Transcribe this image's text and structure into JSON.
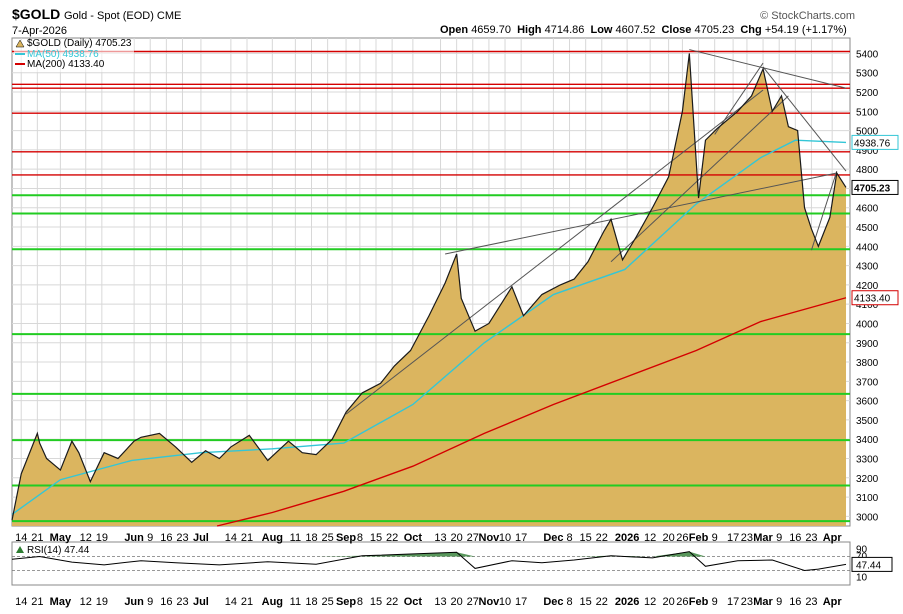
{
  "header": {
    "symbol": "$GOLD",
    "subtitle": "Gold - Spot (EOD) CME",
    "date": "7-Apr-2026",
    "credit": "© StockCharts.com",
    "open_label": "Open",
    "open": "4659.70",
    "high_label": "High",
    "high": "4714.86",
    "low_label": "Low",
    "low": "4607.52",
    "close_label": "Close",
    "close": "4705.23",
    "chg_label": "Chg",
    "chg": "+54.19 (+1.17%)"
  },
  "colors": {
    "area_fill": "#dbb55f",
    "price_line": "#1a1a1a",
    "ma50": "#33c6d6",
    "ma200": "#d40000",
    "green_level": "#22cc22",
    "red_level": "#d40000",
    "grid": "#d8d8d8",
    "trend": "#555555"
  },
  "chart_data": [
    {
      "type": "area",
      "title": "$GOLD",
      "ylim": [
        2950,
        5480
      ],
      "yticks": [
        3000,
        3100,
        3200,
        3300,
        3400,
        3500,
        3600,
        3700,
        3800,
        3900,
        4000,
        4100,
        4200,
        4300,
        4400,
        4500,
        4600,
        4700,
        4800,
        4900,
        5000,
        5100,
        5200,
        5300,
        5400
      ],
      "x_tick_labels": [
        {
          "date": "2025-04-14",
          "label": "14"
        },
        {
          "date": "2025-04-21",
          "label": "21"
        },
        {
          "date": "2025-05-01",
          "label": "May",
          "bold": true
        },
        {
          "date": "2025-05-12",
          "label": "12"
        },
        {
          "date": "2025-05-19",
          "label": "19"
        },
        {
          "date": "2025-06-02",
          "label": "Jun",
          "bold": true
        },
        {
          "date": "2025-06-09",
          "label": "9"
        },
        {
          "date": "2025-06-16",
          "label": "16"
        },
        {
          "date": "2025-06-23",
          "label": "23"
        },
        {
          "date": "2025-07-01",
          "label": "Jul",
          "bold": true
        },
        {
          "date": "2025-07-14",
          "label": "14"
        },
        {
          "date": "2025-07-21",
          "label": "21"
        },
        {
          "date": "2025-08-01",
          "label": "Aug",
          "bold": true
        },
        {
          "date": "2025-08-11",
          "label": "11"
        },
        {
          "date": "2025-08-18",
          "label": "18"
        },
        {
          "date": "2025-08-25",
          "label": "25"
        },
        {
          "date": "2025-09-02",
          "label": "Sep",
          "bold": true
        },
        {
          "date": "2025-09-08",
          "label": "8"
        },
        {
          "date": "2025-09-15",
          "label": "15"
        },
        {
          "date": "2025-09-22",
          "label": "22"
        },
        {
          "date": "2025-10-01",
          "label": "Oct",
          "bold": true
        },
        {
          "date": "2025-10-13",
          "label": "13"
        },
        {
          "date": "2025-10-20",
          "label": "20"
        },
        {
          "date": "2025-10-27",
          "label": "27"
        },
        {
          "date": "2025-11-03",
          "label": "Nov",
          "bold": true
        },
        {
          "date": "2025-11-10",
          "label": "10"
        },
        {
          "date": "2025-11-17",
          "label": "17"
        },
        {
          "date": "2025-12-01",
          "label": "Dec",
          "bold": true
        },
        {
          "date": "2025-12-08",
          "label": "8"
        },
        {
          "date": "2025-12-15",
          "label": "15"
        },
        {
          "date": "2025-12-22",
          "label": "22"
        },
        {
          "date": "2026-01-02",
          "label": "2026",
          "bold": true
        },
        {
          "date": "2026-01-12",
          "label": "12"
        },
        {
          "date": "2026-01-20",
          "label": "20"
        },
        {
          "date": "2026-01-26",
          "label": "26"
        },
        {
          "date": "2026-02-02",
          "label": "Feb",
          "bold": true
        },
        {
          "date": "2026-02-09",
          "label": "9"
        },
        {
          "date": "2026-02-17",
          "label": "17"
        },
        {
          "date": "2026-02-23",
          "label": "23"
        },
        {
          "date": "2026-03-02",
          "label": "Mar",
          "bold": true
        },
        {
          "date": "2026-03-09",
          "label": "9"
        },
        {
          "date": "2026-03-16",
          "label": "16"
        },
        {
          "date": "2026-03-23",
          "label": "23"
        },
        {
          "date": "2026-04-01",
          "label": "Apr",
          "bold": true
        }
      ],
      "series": [
        {
          "name": "$GOLD (Daily) 4705.23",
          "x": [
            "2025-04-10",
            "2025-04-14",
            "2025-04-16",
            "2025-04-21",
            "2025-04-22",
            "2025-04-25",
            "2025-05-01",
            "2025-05-06",
            "2025-05-09",
            "2025-05-14",
            "2025-05-20",
            "2025-05-26",
            "2025-06-02",
            "2025-06-05",
            "2025-06-13",
            "2025-06-20",
            "2025-06-27",
            "2025-07-03",
            "2025-07-09",
            "2025-07-14",
            "2025-07-22",
            "2025-07-30",
            "2025-08-08",
            "2025-08-14",
            "2025-08-20",
            "2025-08-27",
            "2025-09-02",
            "2025-09-09",
            "2025-09-17",
            "2025-09-23",
            "2025-09-30",
            "2025-10-08",
            "2025-10-15",
            "2025-10-20",
            "2025-10-22",
            "2025-10-28",
            "2025-11-03",
            "2025-11-13",
            "2025-11-18",
            "2025-11-26",
            "2025-12-04",
            "2025-12-10",
            "2025-12-16",
            "2025-12-23",
            "2025-12-26",
            "2025-12-31",
            "2026-01-06",
            "2026-01-13",
            "2026-01-20",
            "2026-01-26",
            "2026-01-29",
            "2026-02-02",
            "2026-02-05",
            "2026-02-10",
            "2026-02-13",
            "2026-02-19",
            "2026-02-25",
            "2026-03-02",
            "2026-03-06",
            "2026-03-10",
            "2026-03-13",
            "2026-03-17",
            "2026-03-20",
            "2026-03-23",
            "2026-03-26",
            "2026-03-31",
            "2026-04-03",
            "2026-04-07"
          ],
          "values": [
            2980,
            3220,
            3280,
            3430,
            3380,
            3300,
            3240,
            3390,
            3330,
            3180,
            3330,
            3300,
            3390,
            3410,
            3430,
            3360,
            3280,
            3340,
            3300,
            3360,
            3420,
            3290,
            3390,
            3330,
            3320,
            3400,
            3540,
            3640,
            3690,
            3780,
            3860,
            4040,
            4210,
            4360,
            4130,
            3960,
            4000,
            4190,
            4040,
            4150,
            4200,
            4230,
            4320,
            4480,
            4540,
            4330,
            4450,
            4600,
            4760,
            5100,
            5400,
            4650,
            4950,
            5010,
            5040,
            5100,
            5180,
            5320,
            5100,
            5180,
            5020,
            5000,
            4600,
            4490,
            4400,
            4550,
            4780,
            4705.23
          ]
        },
        {
          "name": "MA(50) 4938.76",
          "x": [
            "2025-04-10",
            "2025-05-01",
            "2025-06-01",
            "2025-07-01",
            "2025-08-01",
            "2025-09-01",
            "2025-10-01",
            "2025-11-01",
            "2025-12-01",
            "2026-01-01",
            "2026-02-01",
            "2026-03-01",
            "2026-03-16",
            "2026-04-07"
          ],
          "values": [
            3010,
            3190,
            3290,
            3330,
            3350,
            3380,
            3580,
            3900,
            4150,
            4280,
            4620,
            4860,
            4950,
            4938.76
          ]
        },
        {
          "name": "MA(200) 4133.40",
          "x": [
            "2025-07-08",
            "2025-08-01",
            "2025-09-01",
            "2025-10-01",
            "2025-11-01",
            "2025-12-01",
            "2026-01-01",
            "2026-02-01",
            "2026-03-01",
            "2026-04-07"
          ],
          "values": [
            2950,
            3020,
            3130,
            3260,
            3430,
            3580,
            3720,
            3860,
            4010,
            4133.4
          ]
        }
      ],
      "horizontal_levels": {
        "green": [
          4665,
          4570,
          4385,
          3945,
          3635,
          3395,
          3160,
          2975
        ],
        "red": [
          5410,
          5240,
          5220,
          5090,
          4890,
          4770
        ]
      },
      "trend_lines": [
        {
          "x1": "2025-09-02",
          "y1": 3530,
          "x2": "2026-03-02",
          "y2": 5210
        },
        {
          "x1": "2025-10-15",
          "y1": 4360,
          "x2": "2026-04-03",
          "y2": 4780
        },
        {
          "x1": "2025-12-26",
          "y1": 4320,
          "x2": "2026-03-13",
          "y2": 5180
        },
        {
          "x1": "2026-01-29",
          "y1": 5420,
          "x2": "2026-04-07",
          "y2": 5220
        },
        {
          "x1": "2026-02-09",
          "y1": 4980,
          "x2": "2026-03-02",
          "y2": 5350
        },
        {
          "x1": "2026-03-02",
          "y1": 5330,
          "x2": "2026-04-07",
          "y2": 4790
        },
        {
          "x1": "2026-03-23",
          "y1": 4380,
          "x2": "2026-04-03",
          "y2": 4790
        }
      ],
      "price_label": "4705.23",
      "ma50_label": "4938.76",
      "ma200_label": "4133.40",
      "legend_position": "top-left"
    },
    {
      "type": "line",
      "title": "RSI(14) 47.44",
      "ylim": [
        0,
        100
      ],
      "yticks": [
        10,
        70,
        90
      ],
      "reference_lines": [
        30,
        70
      ],
      "current_label": "47.44",
      "series": [
        {
          "name": "RSI(14) 47.44",
          "x": [
            "2025-04-10",
            "2025-04-22",
            "2025-05-06",
            "2025-05-20",
            "2025-06-05",
            "2025-06-20",
            "2025-07-09",
            "2025-07-30",
            "2025-08-20",
            "2025-09-09",
            "2025-09-30",
            "2025-10-20",
            "2025-10-28",
            "2025-11-13",
            "2025-11-26",
            "2025-12-10",
            "2025-12-26",
            "2026-01-13",
            "2026-01-29",
            "2026-02-05",
            "2026-02-19",
            "2026-03-06",
            "2026-03-20",
            "2026-03-26",
            "2026-04-07"
          ],
          "values": [
            62,
            70,
            54,
            46,
            58,
            52,
            46,
            55,
            48,
            72,
            77,
            82,
            36,
            58,
            52,
            60,
            72,
            66,
            84,
            42,
            58,
            60,
            30,
            34,
            47.44
          ]
        }
      ]
    }
  ]
}
